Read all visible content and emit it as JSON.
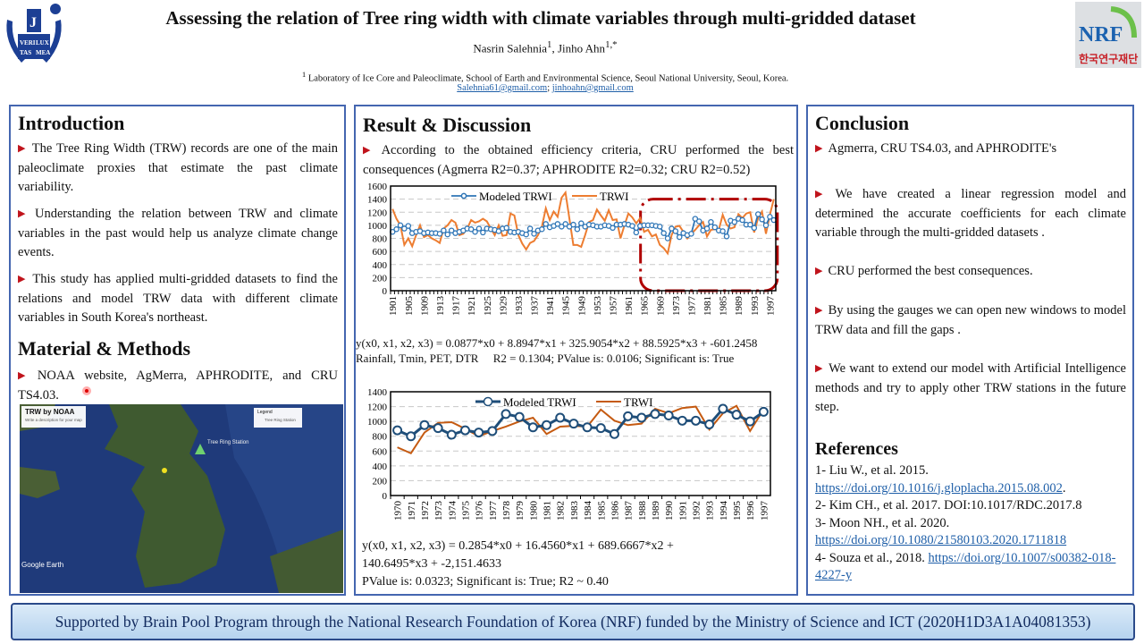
{
  "header": {
    "title": "Assessing the relation of Tree ring width with climate variables through multi-gridded dataset",
    "author1": "Nasrin Salehnia",
    "author1_sup": "1",
    "sep": ", ",
    "author2": "Jinho Ahn",
    "author2_sup": "1,*",
    "affil_sup": "1",
    "affiliation": " Laboratory of Ice Core and Paleoclimate, School of Earth and Environmental Science, Seoul National University, Seoul, Korea.",
    "email1": "Salehnia61@gmail.com",
    "email_sep": "; ",
    "email2": "jinhoahn@gmail.com",
    "logo_left": "VERI TAS LUX MEA",
    "logo_right": "NRF 한국연구재단"
  },
  "intro": {
    "heading": "Introduction",
    "bullets": [
      "The Tree Ring Width (TRW) records are one of the main paleoclimate proxies that estimate the past climate variability.",
      "Understanding the relation between TRW and climate variables in the past would help us analyze climate change events.",
      "This study has applied multi-gridded datasets to find the relations and model TRW data with different climate variables in South Korea's northeast."
    ]
  },
  "methods": {
    "heading": "Material & Methods",
    "bullets": [
      "NOAA website, AgMerra, APHRODITE, and CRU TS4.03."
    ],
    "map": {
      "title": "TRW by NOAA",
      "subtitle": "Write a description for your map",
      "legend_title": "Legend",
      "legend_item": "Tree Ring Station",
      "station_label": "Tree Ring Station",
      "brand": "Google Earth"
    }
  },
  "results": {
    "heading": "Result & Discussion",
    "bullets": [
      "According to the obtained efficiency criteria, CRU performed the best consequences (Agmerra R2=0.37; APHRODITE R2=0.32; CRU R2=0.52)"
    ],
    "eq1_line1": "y(x0, x1, x2, x3) = 0.0877*x0 + 8.8947*x1 + 325.9054*x2 + 88.5925*x3 + -601.2458",
    "eq1_line2": "Rainfall, Tmin, PET, DTR     R2 = 0.1304; PValue is: 0.0106; Significant is: True",
    "eq2_line1": "y(x0, x1, x2, x3) = 0.2854*x0 + 16.4560*x1 + 689.6667*x2 +",
    "eq2_line2": "140.6495*x3 + -2,151.4633",
    "eq2_line3": "PValue is: 0.0323; Significant is: True; R2 ~ 0.40"
  },
  "conclusion": {
    "heading": "Conclusion",
    "bullets": [
      "Agmerra, CRU TS4.03, and APHRODITE's",
      "We have created a linear regression model and determined the accurate coefficients for each climate variable through the multi-gridded datasets .",
      "CRU performed the best consequences.",
      "By using the gauges we can open new windows to model TRW data and fill the gaps .",
      "We want to extend our model with Artificial Intelligence methods and try to apply other TRW stations in the future step."
    ]
  },
  "references": {
    "heading": "References",
    "r1": "1- Liu W., et al. 2015.",
    "r1_link": "https://doi.org/10.1016/j.gloplacha.2015.08.002",
    "r1_end": ".",
    "r2": "2- Kim CH., et al. 2017. DOI:10.1017/RDC.2017.8",
    "r3": "3- Moon NH., et al. 2020.",
    "r3_link": "https://doi.org/10.1080/21580103.2020.1711818",
    "r4": "4- Souza et al., 2018. ",
    "r4_link": "https://doi.org/10.1007/s00382-018-4227-y"
  },
  "footer": "Supported by  Brain Pool Program through the National Research Foundation of Korea (NRF) funded by the Ministry of Science and ICT (2020H1D3A1A04081353)",
  "colors": {
    "panel_border": "#4466b0",
    "modeled": "#2e75b6",
    "trwi": "#ed7d31",
    "trwi2": "#c55a11",
    "modeled2": "#1f4e79",
    "highlight": "#b00000",
    "bullet": "#c0141c"
  },
  "chart_data": [
    {
      "type": "line",
      "x_start": 1901,
      "x_end": 1998,
      "x_tick_step": 4,
      "ylim": [
        0,
        1600
      ],
      "yticks": [
        0,
        200,
        400,
        600,
        800,
        1000,
        1200,
        1400,
        1600
      ],
      "grid": "horizontal dashed",
      "legend": "top",
      "highlight_box": [
        1965,
        1998
      ],
      "series": [
        {
          "name": "Modeled TRWI",
          "marker": "circle",
          "values": [
            900,
            940,
            1000,
            950,
            990,
            880,
            900,
            910,
            880,
            890,
            880,
            880,
            870,
            920,
            860,
            920,
            880,
            900,
            920,
            950,
            940,
            900,
            950,
            890,
            950,
            940,
            930,
            910,
            950,
            960,
            900,
            890,
            900,
            880,
            860,
            950,
            870,
            920,
            940,
            1020,
            970,
            990,
            1020,
            980,
            1020,
            980,
            1010,
            940,
            1030,
            980,
            1010,
            1000,
            980,
            980,
            1000,
            990,
            960,
            1010,
            1010,
            1020,
            1010,
            990,
            890,
            990,
            1000,
            1000,
            1000,
            990,
            980,
            880,
            800,
            950,
            910,
            820,
            880,
            850,
            870,
            1100,
            1060,
            920,
            950,
            1050,
            970,
            920,
            910,
            830,
            1070,
            1050,
            1100,
            1080,
            1010,
            1010,
            960,
            1170,
            1090,
            1000,
            1130,
            1080
          ]
        },
        {
          "name": "TRWI",
          "values": [
            1250,
            1100,
            1000,
            700,
            800,
            680,
            850,
            1000,
            820,
            850,
            800,
            770,
            730,
            950,
            1000,
            1080,
            1040,
            850,
            870,
            950,
            1080,
            1040,
            1060,
            1100,
            1060,
            950,
            850,
            1000,
            840,
            850,
            1180,
            1150,
            850,
            720,
            630,
            730,
            760,
            850,
            980,
            1260,
            1080,
            1210,
            1130,
            1420,
            1500,
            1100,
            700,
            700,
            670,
            850,
            1050,
            1080,
            1240,
            1150,
            1070,
            1230,
            1080,
            1090,
            800,
            1000,
            1180,
            1120,
            1030,
            1110,
            900,
            930,
            830,
            860,
            700,
            650,
            570,
            850,
            980,
            990,
            900,
            800,
            870,
            930,
            1000,
            1050,
            830,
            930,
            940,
            930,
            1160,
            1010,
            950,
            970,
            1170,
            1110,
            1180,
            1200,
            890,
            1110,
            1210,
            870,
            1160,
            1400
          ]
        }
      ]
    },
    {
      "type": "line",
      "x_start": 1970,
      "x_end": 1997,
      "x_tick_step": 1,
      "ylim": [
        0,
        1400
      ],
      "yticks": [
        0,
        200,
        400,
        600,
        800,
        1000,
        1200,
        1400
      ],
      "grid": "horizontal dashed",
      "legend": "top",
      "series": [
        {
          "name": "Modeled TRWI",
          "marker": "circle",
          "values": [
            880,
            800,
            950,
            910,
            820,
            880,
            850,
            870,
            1100,
            1060,
            920,
            950,
            1050,
            970,
            920,
            910,
            830,
            1070,
            1050,
            1100,
            1080,
            1010,
            1010,
            960,
            1170,
            1090,
            1000,
            1130
          ]
        },
        {
          "name": "TRWI",
          "values": [
            650,
            570,
            850,
            980,
            990,
            900,
            800,
            870,
            930,
            1000,
            1050,
            830,
            930,
            940,
            930,
            1160,
            1010,
            950,
            970,
            1170,
            1110,
            1180,
            1200,
            890,
            1110,
            1210,
            870,
            1160
          ]
        }
      ]
    }
  ]
}
